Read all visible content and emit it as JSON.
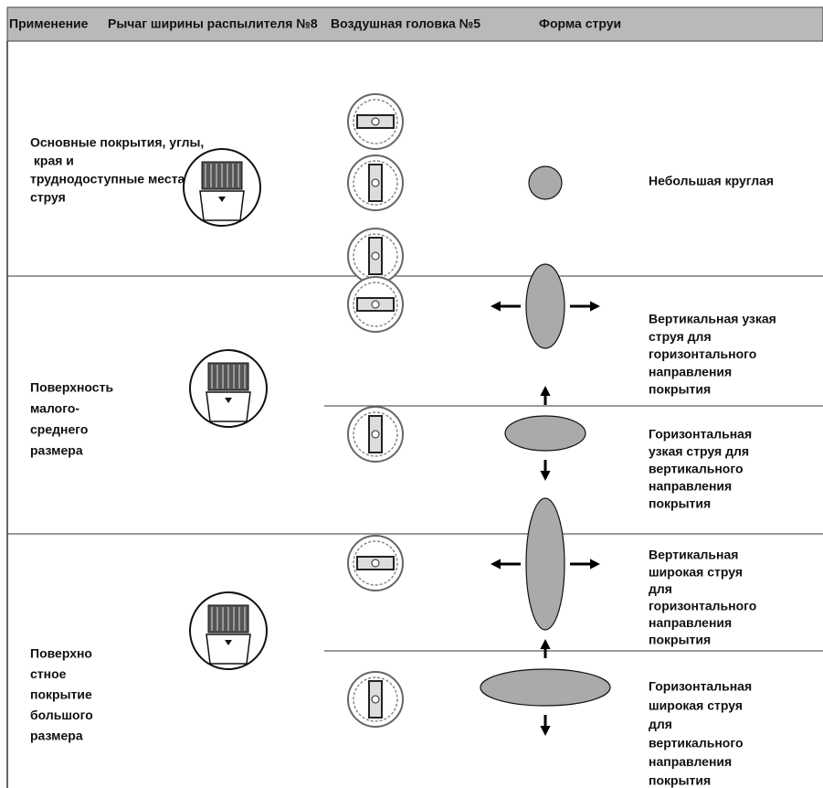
{
  "header": {
    "columns": [
      "Применение",
      "Рычаг ширины распылителя №8",
      "Воздушная головка №5",
      "Форма струи"
    ]
  },
  "rows": [
    {
      "application": [
        "Основные покрытия, углы,",
        " края и",
        "труднодоступные места",
        "струя"
      ],
      "patterns": [
        {
          "label": [
            "Небольшая круглая"
          ]
        }
      ]
    },
    {
      "application": [
        "Поверхность",
        "малого-",
        "среднего",
        "размера"
      ],
      "patterns": [
        {
          "label": [
            "Вертикальная узкая",
            "струя для",
            "горизонтального",
            "направления",
            "покрытия"
          ]
        },
        {
          "label": [
            "Горизонтальная",
            "узкая струя для",
            "вертикального",
            "направления",
            "покрытия"
          ]
        }
      ]
    },
    {
      "application": [
        "Поверхно",
        "стное",
        "покрытие",
        "большого",
        "размера"
      ],
      "patterns": [
        {
          "label": [
            "Вертикальная",
            "широкая струя",
            "для",
            "горизонтального",
            "направления",
            "покрытия"
          ]
        },
        {
          "label": [
            "Горизонтальная",
            "широкая струя",
            "для",
            "вертикального",
            "направления",
            "покрытия"
          ]
        }
      ]
    }
  ]
}
